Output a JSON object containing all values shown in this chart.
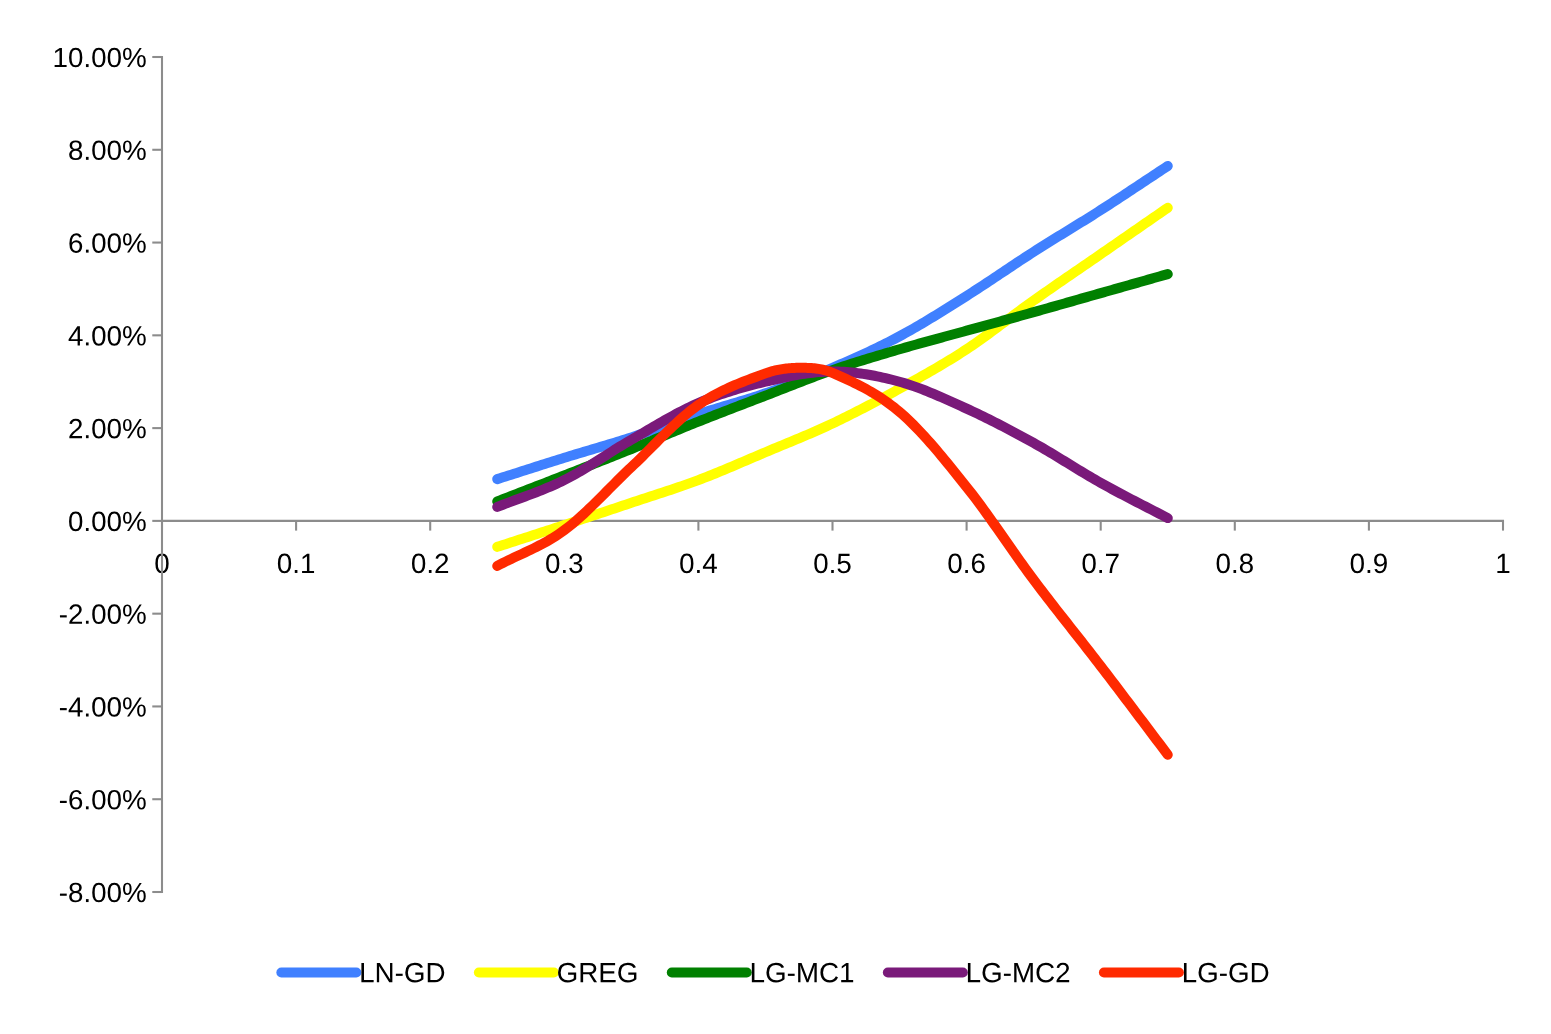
{
  "chart_data": {
    "type": "line",
    "x": [
      0.25,
      0.3,
      0.35,
      0.4,
      0.45,
      0.5,
      0.55,
      0.6,
      0.65,
      0.7,
      0.75
    ],
    "series": [
      {
        "name": "LN-GD",
        "color": "#4080ff",
        "values": [
          0.9,
          1.36,
          1.8,
          2.3,
          2.75,
          3.3,
          3.98,
          4.85,
          5.8,
          6.7,
          7.65
        ]
      },
      {
        "name": "GREG",
        "color": "#ffff00",
        "values": [
          -0.56,
          -0.09,
          0.39,
          0.88,
          1.48,
          2.1,
          2.85,
          3.7,
          4.75,
          5.75,
          6.75
        ]
      },
      {
        "name": "LG-MC1",
        "color": "#008000",
        "values": [
          0.42,
          0.98,
          1.55,
          2.14,
          2.7,
          3.25,
          3.7,
          4.1,
          4.5,
          4.91,
          5.32
        ]
      },
      {
        "name": "LG-MC2",
        "color": "#7a1a7a",
        "values": [
          0.3,
          0.88,
          1.75,
          2.54,
          3.0,
          3.22,
          3.0,
          2.42,
          1.68,
          0.82,
          0.06
        ]
      },
      {
        "name": "LG-GD",
        "color": "#ff2a00",
        "x": [
          0.25,
          0.3,
          0.35,
          0.4,
          0.45,
          0.475,
          0.5,
          0.55,
          0.6,
          0.65,
          0.7,
          0.75
        ],
        "values": [
          -0.97,
          -0.2,
          1.16,
          2.5,
          3.18,
          3.3,
          3.19,
          2.35,
          0.73,
          -1.27,
          -3.13,
          -5.04
        ]
      }
    ],
    "xlim": [
      0,
      1
    ],
    "xticks": [
      0,
      0.1,
      0.2,
      0.3,
      0.4,
      0.5,
      0.6,
      0.7,
      0.8,
      0.9,
      1
    ],
    "ylim": [
      -8,
      10
    ],
    "yticks": [
      {
        "value": -8,
        "label": "-8.00%"
      },
      {
        "value": -6,
        "label": "-6.00%"
      },
      {
        "value": -4,
        "label": "-4.00%"
      },
      {
        "value": -2,
        "label": "-2.00%"
      },
      {
        "value": 0,
        "label": "0.00%"
      },
      {
        "value": 2,
        "label": "2.00%"
      },
      {
        "value": 4,
        "label": "4.00%"
      },
      {
        "value": 6,
        "label": "6.00%"
      },
      {
        "value": 8,
        "label": "8.00%"
      },
      {
        "value": 10,
        "label": "10.00%"
      }
    ],
    "grid": false,
    "legend": "bottom",
    "marker": "none",
    "line_style": "solid"
  }
}
